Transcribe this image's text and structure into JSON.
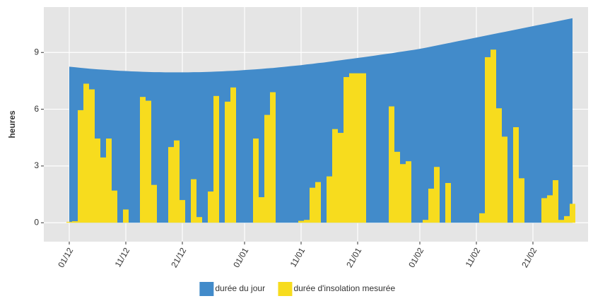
{
  "chart_data": {
    "type": "area-bar",
    "ylabel": "heures",
    "categories": [
      "01/12",
      null,
      null,
      null,
      null,
      null,
      null,
      null,
      null,
      null,
      "11/12",
      null,
      null,
      null,
      null,
      null,
      null,
      null,
      null,
      null,
      "21/12",
      null,
      null,
      null,
      null,
      null,
      null,
      null,
      null,
      null,
      null,
      "01/01",
      null,
      null,
      null,
      null,
      null,
      null,
      null,
      null,
      null,
      "11/01",
      null,
      null,
      null,
      null,
      null,
      null,
      null,
      null,
      null,
      "21/01",
      null,
      null,
      null,
      null,
      null,
      null,
      null,
      null,
      null,
      null,
      "01/02",
      null,
      null,
      null,
      null,
      null,
      null,
      null,
      null,
      null,
      "11/02",
      null,
      null,
      null,
      null,
      null,
      null,
      null,
      null,
      null,
      "21/02",
      null,
      null,
      null,
      null,
      null,
      null,
      null
    ],
    "series": [
      {
        "name": "durée du jour",
        "color": "#428bca",
        "kind": "area",
        "values": [
          8.25,
          8.22,
          8.19,
          8.16,
          8.13,
          8.11,
          8.09,
          8.07,
          8.05,
          8.03,
          8.02,
          8.0,
          7.99,
          7.98,
          7.97,
          7.96,
          7.96,
          7.95,
          7.95,
          7.95,
          7.95,
          7.95,
          7.96,
          7.96,
          7.97,
          7.98,
          7.99,
          8.0,
          8.02,
          8.03,
          8.05,
          8.07,
          8.09,
          8.11,
          8.13,
          8.16,
          8.18,
          8.21,
          8.24,
          8.27,
          8.3,
          8.33,
          8.37,
          8.4,
          8.44,
          8.47,
          8.51,
          8.55,
          8.59,
          8.63,
          8.67,
          8.71,
          8.75,
          8.79,
          8.83,
          8.88,
          8.92,
          8.96,
          9.01,
          9.05,
          9.1,
          9.14,
          9.19,
          9.25,
          9.31,
          9.37,
          9.43,
          9.49,
          9.55,
          9.61,
          9.67,
          9.73,
          9.79,
          9.85,
          9.91,
          9.97,
          10.03,
          10.09,
          10.15,
          10.21,
          10.27,
          10.33,
          10.39,
          10.45,
          10.51,
          10.57,
          10.63,
          10.69,
          10.75,
          10.81
        ]
      },
      {
        "name": "durée d'insolation mesurée",
        "color": "#f7dc1e",
        "kind": "bar",
        "values": [
          0.05,
          0.08,
          5.95,
          7.35,
          7.05,
          4.45,
          3.45,
          4.45,
          1.7,
          0,
          0.7,
          0,
          0,
          6.65,
          6.45,
          2.0,
          0,
          0,
          4.0,
          4.35,
          1.2,
          0,
          2.3,
          0.3,
          0,
          1.65,
          6.7,
          0,
          6.4,
          7.15,
          0,
          0,
          0,
          4.45,
          1.35,
          5.7,
          6.9,
          0,
          0,
          0,
          0,
          0.1,
          0.15,
          1.85,
          2.15,
          0,
          2.45,
          4.95,
          4.75,
          7.7,
          7.9,
          7.9,
          7.9,
          0,
          0,
          0,
          0,
          6.15,
          3.75,
          3.1,
          3.25,
          0,
          0,
          0.15,
          1.8,
          2.95,
          0,
          2.1,
          0,
          0,
          0,
          0,
          0,
          0.5,
          8.75,
          9.15,
          6.05,
          4.55,
          0,
          5.05,
          2.35,
          0,
          0,
          0,
          1.3,
          1.45,
          2.25,
          0.15,
          0.35,
          1.0
        ]
      }
    ],
    "ylim": [
      -1.0,
      11.4
    ],
    "yticks": [
      0,
      3,
      6,
      9
    ],
    "grid": true,
    "legend": "bottom"
  }
}
